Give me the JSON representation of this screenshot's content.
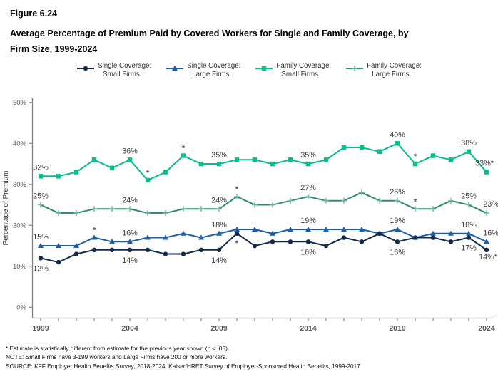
{
  "figure_label": "Figure 6.24",
  "title_lines": [
    "Average Percentage of Premium Paid by Covered Workers for Single and Family Coverage, by",
    "Firm Size, 1999-2024"
  ],
  "legend": [
    {
      "line1": "Single Coverage:",
      "line2": "Small Firms"
    },
    {
      "line1": "Single Coverage:",
      "line2": "Large Firms"
    },
    {
      "line1": "Family Coverage:",
      "line2": "Small Firms"
    },
    {
      "line1": "Family Coverage:",
      "line2": "Large Firms"
    }
  ],
  "chart_data": {
    "type": "line",
    "title": "Average Percentage of Premium Paid by Covered Workers for Single and Family Coverage, by Firm Size, 1999-2024",
    "x": [
      1999,
      2000,
      2001,
      2002,
      2003,
      2004,
      2005,
      2006,
      2007,
      2008,
      2009,
      2010,
      2011,
      2012,
      2013,
      2014,
      2015,
      2016,
      2017,
      2018,
      2019,
      2020,
      2021,
      2022,
      2023,
      2024
    ],
    "x_labeled_ticks": [
      1999,
      2004,
      2009,
      2014,
      2019,
      2024
    ],
    "ylabel": "Percentage of Premium",
    "ylim": [
      0,
      50
    ],
    "yticks": [
      0,
      10,
      20,
      30,
      40,
      50
    ],
    "grid": false,
    "legend_position": "top",
    "series": [
      {
        "name": "Single Coverage: Small Firms",
        "marker": "circle",
        "color": "#13294B",
        "marker_color": "#13294B",
        "values": [
          12,
          11,
          13,
          14,
          14,
          14,
          14,
          13,
          13,
          14,
          14,
          18,
          15,
          16,
          16,
          16,
          15,
          17,
          16,
          18,
          16,
          17,
          17,
          16,
          17,
          14
        ]
      },
      {
        "name": "Single Coverage: Large Firms",
        "marker": "triangle",
        "color": "#1E5FA4",
        "marker_color": "#1E5FA4",
        "values": [
          15,
          15,
          15,
          17,
          16,
          16,
          17,
          17,
          18,
          17,
          18,
          19,
          19,
          18,
          19,
          19,
          19,
          19,
          19,
          18,
          19,
          17,
          18,
          18,
          18,
          16
        ]
      },
      {
        "name": "Family Coverage: Small Firms",
        "marker": "square",
        "color": "#06BE8D",
        "marker_color": "#06BE8D",
        "values": [
          32,
          32,
          33,
          36,
          34,
          36,
          31,
          33,
          37,
          35,
          35,
          36,
          36,
          35,
          36,
          35,
          36,
          39,
          39,
          38,
          40,
          35,
          37,
          36,
          38,
          33
        ]
      },
      {
        "name": "Family Coverage: Large Firms",
        "marker": "plus",
        "color": "#2F8C73",
        "marker_color": "#69BCA0",
        "values": [
          25,
          23,
          23,
          24,
          24,
          24,
          23,
          23,
          24,
          24,
          24,
          27,
          25,
          25,
          26,
          27,
          26,
          26,
          28,
          26,
          26,
          24,
          24,
          26,
          25,
          23
        ]
      }
    ],
    "point_labels": [
      {
        "series": 2,
        "year": 1999,
        "text": "32%",
        "pos": "above"
      },
      {
        "series": 3,
        "year": 1999,
        "text": "25%",
        "pos": "above"
      },
      {
        "series": 1,
        "year": 1999,
        "text": "15%",
        "pos": "above"
      },
      {
        "series": 0,
        "year": 1999,
        "text": "12%",
        "pos": "below"
      },
      {
        "series": 2,
        "year": 2004,
        "text": "36%",
        "pos": "above"
      },
      {
        "series": 3,
        "year": 2004,
        "text": "24%",
        "pos": "above"
      },
      {
        "series": 1,
        "year": 2004,
        "text": "16%",
        "pos": "above"
      },
      {
        "series": 0,
        "year": 2004,
        "text": "14%",
        "pos": "below"
      },
      {
        "series": 2,
        "year": 2009,
        "text": "35%",
        "pos": "above"
      },
      {
        "series": 3,
        "year": 2009,
        "text": "24%",
        "pos": "above"
      },
      {
        "series": 1,
        "year": 2009,
        "text": "18%",
        "pos": "above"
      },
      {
        "series": 0,
        "year": 2009,
        "text": "14%",
        "pos": "below"
      },
      {
        "series": 2,
        "year": 2014,
        "text": "35%",
        "pos": "above"
      },
      {
        "series": 3,
        "year": 2014,
        "text": "27%",
        "pos": "above"
      },
      {
        "series": 1,
        "year": 2014,
        "text": "19%",
        "pos": "above"
      },
      {
        "series": 0,
        "year": 2014,
        "text": "16%",
        "pos": "below"
      },
      {
        "series": 2,
        "year": 2019,
        "text": "40%",
        "pos": "above"
      },
      {
        "series": 3,
        "year": 2019,
        "text": "26%",
        "pos": "above"
      },
      {
        "series": 1,
        "year": 2019,
        "text": "19%",
        "pos": "above"
      },
      {
        "series": 0,
        "year": 2019,
        "text": "16%",
        "pos": "below"
      },
      {
        "series": 2,
        "year": 2023,
        "text": "38%",
        "pos": "above"
      },
      {
        "series": 3,
        "year": 2023,
        "text": "25%",
        "pos": "above"
      },
      {
        "series": 1,
        "year": 2023,
        "text": "18%",
        "pos": "above"
      },
      {
        "series": 0,
        "year": 2023,
        "text": "17%",
        "pos": "below"
      },
      {
        "series": 2,
        "year": 2024,
        "text": "33%*",
        "pos": "above",
        "dx": -3
      },
      {
        "series": 3,
        "year": 2024,
        "text": "23%",
        "pos": "above",
        "dx": 6
      },
      {
        "series": 1,
        "year": 2024,
        "text": "16%",
        "pos": "above",
        "dx": 6
      },
      {
        "series": 0,
        "year": 2024,
        "text": "14%*",
        "pos": "below",
        "dx": 2,
        "dy": -5
      }
    ],
    "asterisks": [
      {
        "series": 1,
        "year": 2002,
        "pos": "above"
      },
      {
        "series": 2,
        "year": 2005,
        "pos": "above"
      },
      {
        "series": 2,
        "year": 2007,
        "pos": "above"
      },
      {
        "series": 3,
        "year": 2010,
        "pos": "above"
      },
      {
        "series": 0,
        "year": 2010,
        "pos": "below"
      },
      {
        "series": 2,
        "year": 2020,
        "pos": "above"
      },
      {
        "series": 3,
        "year": 2020,
        "pos": "above"
      }
    ]
  },
  "footnotes": [
    "* Estimate is statistically different from estimate for the previous year shown (p < .05).",
    "NOTE: Small Firms have 3-199 workers and Large Firms have 200 or more workers.",
    "SOURCE: KFF Employer Health Benefits Survey, 2018-2024; Kaiser/HRET Survey of Employer-Sponsored Health Benefits, 1999-2017"
  ]
}
